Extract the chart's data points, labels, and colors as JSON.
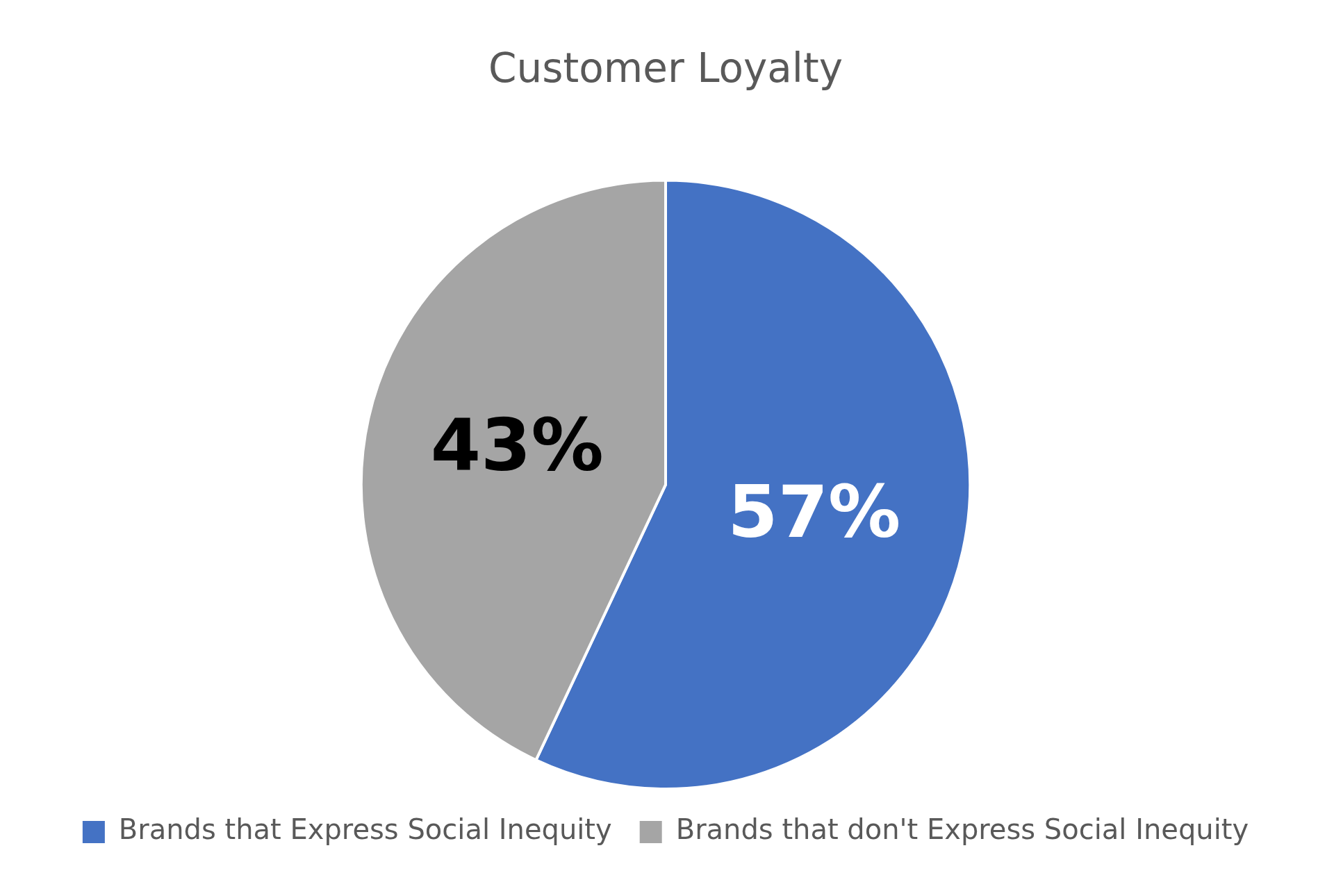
{
  "chart_data": {
    "type": "pie",
    "title": "Customer Loyalty",
    "categories": [
      "Brands that Express Social Inequity",
      "Brands that don't Express Social Inequity"
    ],
    "values": [
      57,
      43
    ],
    "colors": [
      "#4472c4",
      "#a5a5a5"
    ],
    "value_labels": [
      "57%",
      "43%"
    ],
    "legend": "bottom"
  }
}
